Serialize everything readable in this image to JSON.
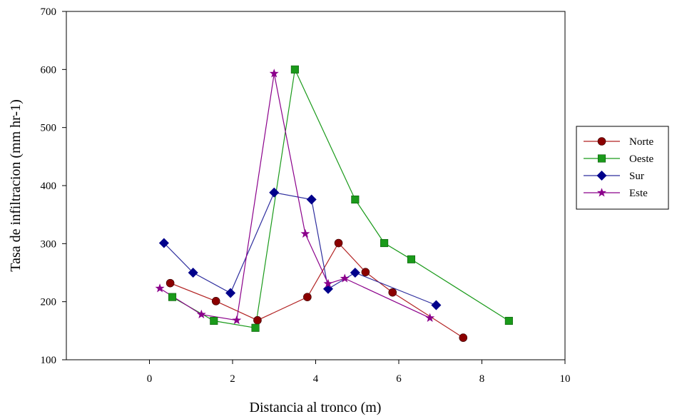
{
  "chart_data": {
    "type": "line",
    "xlabel": "Distancia al tronco (m)",
    "ylabel": "Tasa de infiltracion (mm hr-1)",
    "xlim": [
      -2,
      10
    ],
    "ylim": [
      100,
      700
    ],
    "xticks": [
      0,
      2,
      4,
      6,
      8,
      10
    ],
    "yticks": [
      100,
      200,
      300,
      400,
      500,
      600,
      700
    ],
    "grid": false,
    "legend_position": "right",
    "series": [
      {
        "name": "Norte",
        "color": "#8b0000",
        "line_color": "#b22222",
        "marker": "circle",
        "x": [
          0.5,
          1.6,
          2.6,
          3.8,
          4.55,
          5.2,
          5.85,
          7.55
        ],
        "y": [
          232,
          201,
          168,
          208,
          301,
          251,
          216,
          138
        ]
      },
      {
        "name": "Oeste",
        "color": "#1a9a1a",
        "line_color": "#1a9a1a",
        "marker": "square",
        "x": [
          0.55,
          1.55,
          2.55,
          3.5,
          4.95,
          5.65,
          6.3,
          8.65
        ],
        "y": [
          208,
          167,
          155,
          600,
          376,
          301,
          273,
          167
        ]
      },
      {
        "name": "Sur",
        "color": "#00008b",
        "line_color": "#2e2e9e",
        "marker": "diamond",
        "x": [
          0.35,
          1.05,
          1.95,
          3.0,
          3.9,
          4.3,
          4.95,
          6.9
        ],
        "y": [
          301,
          250,
          215,
          388,
          376,
          222,
          250,
          194
        ]
      },
      {
        "name": "Este",
        "color": "#8b008b",
        "line_color": "#8b008b",
        "marker": "star",
        "x": [
          0.25,
          1.25,
          2.1,
          3.0,
          3.75,
          4.3,
          4.7,
          6.75
        ],
        "y": [
          223,
          178,
          168,
          593,
          317,
          231,
          240,
          172
        ]
      }
    ]
  }
}
